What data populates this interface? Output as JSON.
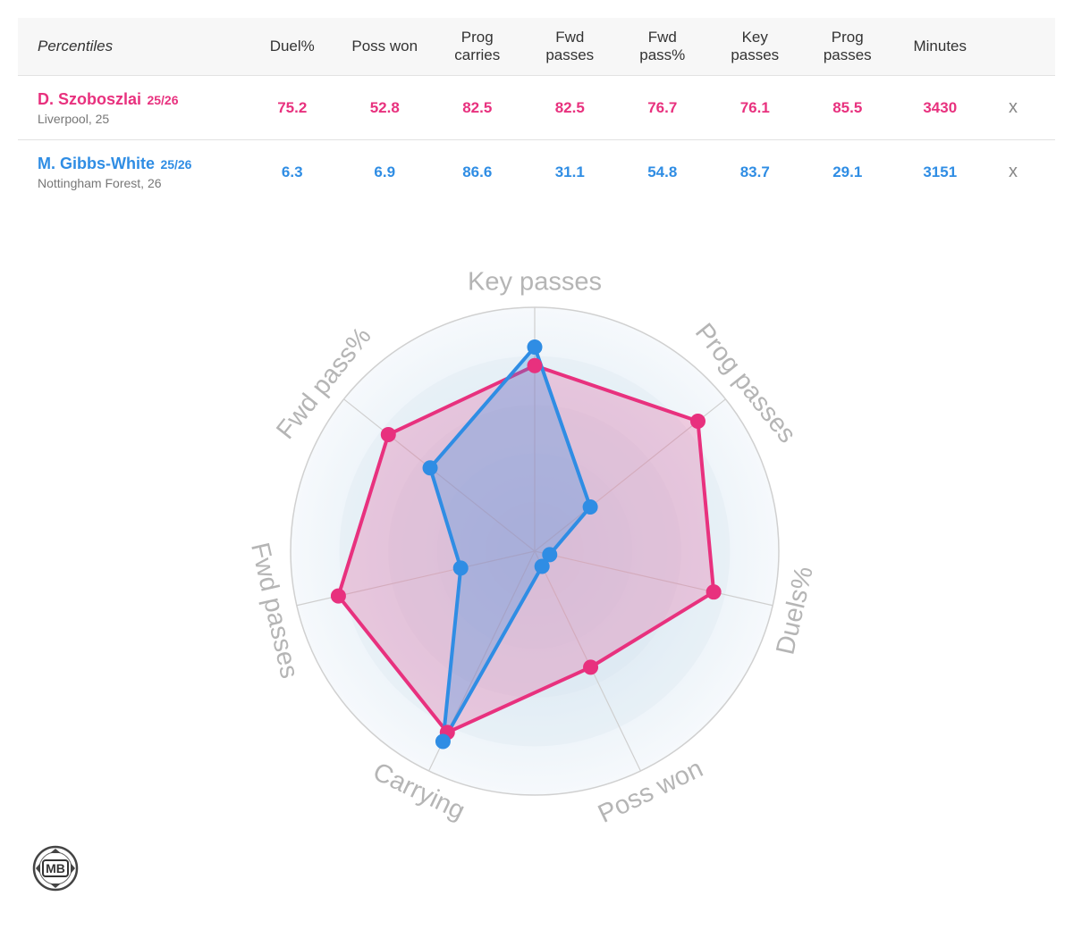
{
  "table": {
    "header_label": "Percentiles",
    "columns": [
      "Duel%",
      "Poss won",
      "Prog\ncarries",
      "Fwd\npasses",
      "Fwd\npass%",
      "Key\npasses",
      "Prog\npasses",
      "Minutes"
    ],
    "remove_label": "x",
    "players": [
      {
        "name": "D. Szoboszlai",
        "season": "25/26",
        "meta": "Liverpool, 25",
        "values": [
          "75.2",
          "52.8",
          "82.5",
          "82.5",
          "76.7",
          "76.1",
          "85.5",
          "3430"
        ]
      },
      {
        "name": "M. Gibbs-White",
        "season": "25/26",
        "meta": "Nottingham Forest, 26",
        "values": [
          "6.3",
          "6.9",
          "86.6",
          "31.1",
          "54.8",
          "83.7",
          "29.1",
          "3151"
        ]
      }
    ]
  },
  "chart_data": {
    "type": "radar",
    "axes": [
      "Key passes",
      "Prog passes",
      "Duels%",
      "Poss won",
      "Carrying",
      "Fwd passes",
      "Fwd pass%"
    ],
    "range": [
      0,
      100
    ],
    "series": [
      {
        "name": "D. Szoboszlai",
        "color": "#e8317e",
        "values": [
          76.1,
          85.5,
          75.2,
          52.8,
          82.5,
          82.5,
          76.7
        ]
      },
      {
        "name": "M. Gibbs-White",
        "color": "#2f8de4",
        "values": [
          83.7,
          29.1,
          6.3,
          6.9,
          86.6,
          31.1,
          54.8
        ]
      }
    ]
  },
  "logo": {
    "text": "MB"
  },
  "colors": {
    "pink": "#e8317e",
    "blue": "#2f8de4",
    "grid": "#d0d0d0",
    "axis_label": "#b5b5b5"
  }
}
